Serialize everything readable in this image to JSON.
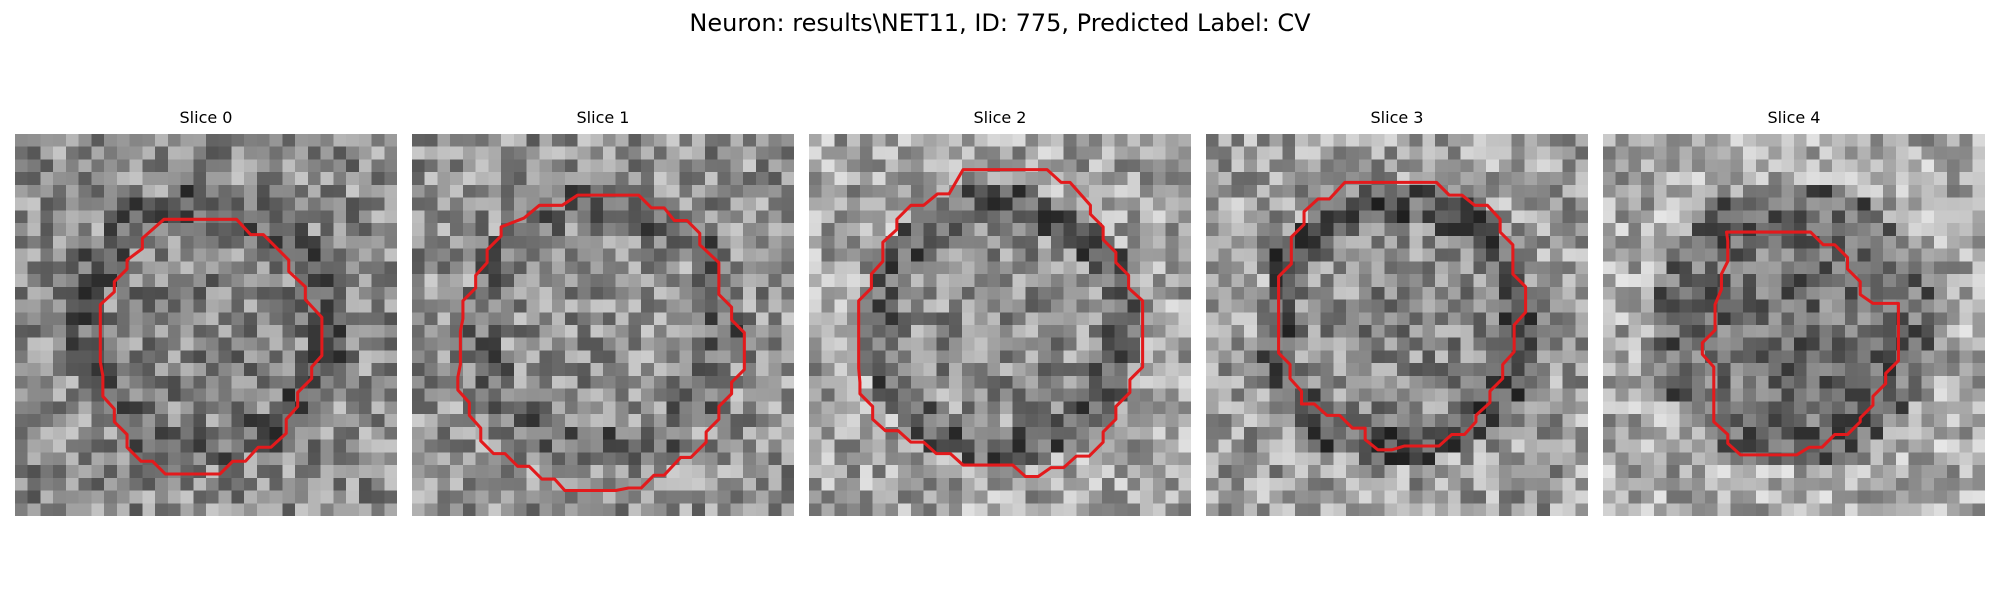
{
  "figure": {
    "title": "Neuron: results\\NET11, ID: 775, Predicted Label: CV"
  },
  "slices": [
    {
      "label": "Slice 0",
      "outline_color": "#e31a1c",
      "pixel_seed": 11,
      "center_darkness": 0.15,
      "ring_darkness": 0.35,
      "outer_darkness": 0.25
    },
    {
      "label": "Slice 1",
      "outline_color": "#e31a1c",
      "pixel_seed": 23,
      "center_darkness": 0.05,
      "ring_darkness": 0.3,
      "outer_darkness": 0.2
    },
    {
      "label": "Slice 2",
      "outline_color": "#e31a1c",
      "pixel_seed": 37,
      "center_darkness": 0.05,
      "ring_darkness": 0.35,
      "outer_darkness": 0.05
    },
    {
      "label": "Slice 3",
      "outline_color": "#e31a1c",
      "pixel_seed": 53,
      "center_darkness": 0.1,
      "ring_darkness": 0.4,
      "outer_darkness": 0.1
    },
    {
      "label": "Slice 4",
      "outline_color": "#e31a1c",
      "pixel_seed": 71,
      "center_darkness": 0.35,
      "ring_darkness": 0.3,
      "outer_darkness": 0.0
    }
  ]
}
